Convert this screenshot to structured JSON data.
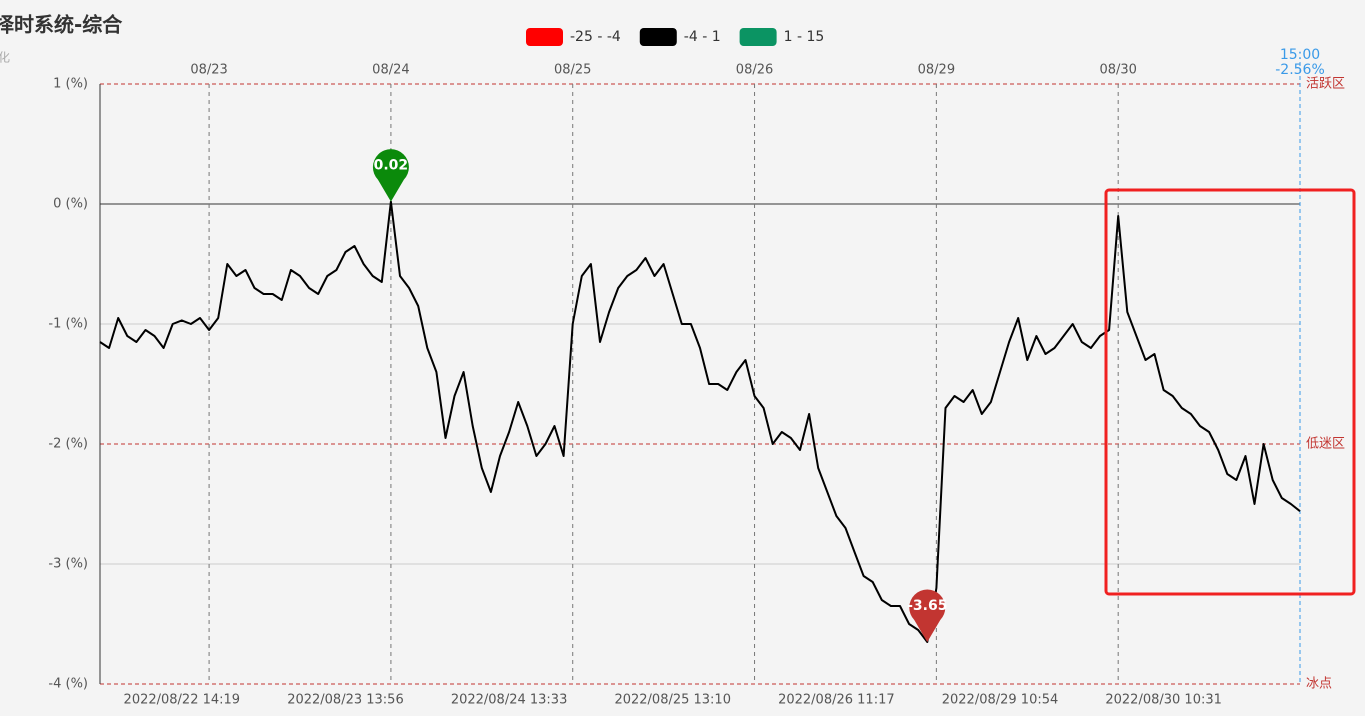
{
  "chart_data": {
    "type": "line",
    "title": "择时系统-综合",
    "subtitle": "化",
    "legend": [
      {
        "label": "-25 - -4",
        "color": "#ff0000"
      },
      {
        "label": "-4 - 1",
        "color": "#000000"
      },
      {
        "label": "1 - 15",
        "color": "#0b9463"
      }
    ],
    "categories": [
      null,
      null,
      null,
      null,
      null,
      null,
      null,
      null,
      null,
      "2022/08/22 14:19",
      null,
      null,
      null,
      null,
      null,
      null,
      null,
      null,
      null,
      null,
      null,
      null,
      null,
      null,
      null,
      null,
      null,
      "2022/08/23 13:56",
      null,
      null,
      null,
      null,
      null,
      null,
      null,
      null,
      null,
      null,
      null,
      null,
      null,
      null,
      null,
      null,
      null,
      "2022/08/24 13:33",
      null,
      null,
      null,
      null,
      null,
      null,
      null,
      null,
      null,
      null,
      null,
      null,
      null,
      null,
      null,
      null,
      null,
      "2022/08/25 13:10",
      null,
      null,
      null,
      null,
      null,
      null,
      null,
      null,
      null,
      null,
      null,
      null,
      null,
      null,
      null,
      null,
      null,
      "2022/08/26 11:17",
      null,
      null,
      null,
      null,
      null,
      null,
      null,
      null,
      null,
      null,
      null,
      null,
      null,
      null,
      null,
      null,
      null,
      "2022/08/29 10:54",
      null,
      null,
      null,
      null,
      null,
      null,
      null,
      null,
      null,
      null,
      null,
      null,
      null,
      null,
      null,
      null,
      null,
      "2022/08/30 10:31",
      null,
      null,
      null,
      null,
      null,
      null,
      null,
      null,
      null,
      null,
      null,
      null,
      null,
      null,
      null
    ],
    "top_categories": [
      null,
      null,
      null,
      null,
      null,
      null,
      null,
      null,
      null,
      null,
      null,
      null,
      "08/23",
      null,
      null,
      null,
      null,
      null,
      null,
      null,
      null,
      null,
      null,
      null,
      null,
      null,
      null,
      null,
      null,
      null,
      null,
      null,
      "08/24",
      null,
      null,
      null,
      null,
      null,
      null,
      null,
      null,
      null,
      null,
      null,
      null,
      null,
      null,
      null,
      null,
      null,
      null,
      null,
      "08/25",
      null,
      null,
      null,
      null,
      null,
      null,
      null,
      null,
      null,
      null,
      null,
      null,
      null,
      null,
      null,
      null,
      null,
      null,
      null,
      "08/26",
      null,
      null,
      null,
      null,
      null,
      null,
      null,
      null,
      null,
      null,
      null,
      null,
      null,
      null,
      null,
      null,
      null,
      null,
      null,
      "08/29",
      null,
      null,
      null,
      null,
      null,
      null,
      null,
      null,
      null,
      null,
      null,
      null,
      null,
      null,
      null,
      null,
      null,
      null,
      null,
      "08/30",
      null,
      null,
      null,
      null,
      null,
      null,
      null,
      null,
      null,
      null,
      null,
      null,
      null,
      null,
      null,
      null,
      null,
      null,
      null,
      null
    ],
    "series": [
      {
        "color": "#000000",
        "values": [
          -1.15,
          -1.2,
          -0.95,
          -1.1,
          -1.15,
          -1.05,
          -1.1,
          -1.2,
          -1.0,
          -0.97,
          -1.0,
          -0.95,
          -1.05,
          -0.95,
          -0.5,
          -0.6,
          -0.55,
          -0.7,
          -0.75,
          -0.75,
          -0.8,
          -0.55,
          -0.6,
          -0.7,
          -0.75,
          -0.6,
          -0.55,
          -0.4,
          -0.35,
          -0.5,
          -0.6,
          -0.65,
          0.02,
          -0.6,
          -0.7,
          -0.85,
          -1.2,
          -1.4,
          -1.95,
          -1.6,
          -1.4,
          -1.85,
          -2.2,
          -2.4,
          -2.1,
          -1.9,
          -1.65,
          -1.85,
          -2.1,
          -2.0,
          -1.85,
          -2.1,
          -1.0,
          -0.6,
          -0.5,
          -1.15,
          -0.9,
          -0.7,
          -0.6,
          -0.55,
          -0.45,
          -0.6,
          -0.5,
          -0.75,
          -1.0,
          -1.0,
          -1.2,
          -1.5,
          -1.5,
          -1.55,
          -1.4,
          -1.3,
          -1.6,
          -1.7,
          -2.0,
          -1.9,
          -1.95,
          -2.05,
          -1.75,
          -2.2,
          -2.4,
          -2.6,
          -2.7,
          -2.9,
          -3.1,
          -3.15,
          -3.3,
          -3.35,
          -3.35,
          -3.5,
          -3.55,
          -3.65,
          -3.2,
          -1.7,
          -1.6,
          -1.65,
          -1.55,
          -1.75,
          -1.65,
          -1.4,
          -1.15,
          -0.95,
          -1.3,
          -1.1,
          -1.25,
          -1.2,
          -1.1,
          -1.0,
          -1.15,
          -1.2,
          -1.1,
          -1.05,
          -0.1,
          -0.9,
          -1.1,
          -1.3,
          -1.25,
          -1.55,
          -1.6,
          -1.7,
          -1.75,
          -1.85,
          -1.9,
          -2.05,
          -2.25,
          -2.3,
          -2.1,
          -2.5,
          -2.0,
          -2.3,
          -2.45,
          -2.5,
          -2.56
        ]
      }
    ],
    "mark_points": [
      {
        "index": 32,
        "value": 0.02,
        "color": "#0b8a0b"
      },
      {
        "index": 91,
        "value": -3.65,
        "color": "#c23531"
      }
    ],
    "last_point": {
      "time": "15:00",
      "value": -2.56,
      "value_label": "-2.56%"
    },
    "zones": [
      {
        "value": 1,
        "label": "活跃区"
      },
      {
        "value": -2,
        "label": "低迷区"
      },
      {
        "value": -4,
        "label": "冰点"
      }
    ],
    "ylim": [
      -4,
      1
    ],
    "yticks": [
      {
        "value": 1,
        "label": "1 (%)"
      },
      {
        "value": 0,
        "label": "0 (%)"
      },
      {
        "value": -1,
        "label": "-1 (%)"
      },
      {
        "value": -2,
        "label": "-2 (%)"
      },
      {
        "value": -3,
        "label": "-3 (%)"
      },
      {
        "value": -4,
        "label": "-4 (%)"
      }
    ],
    "grid": true
  }
}
